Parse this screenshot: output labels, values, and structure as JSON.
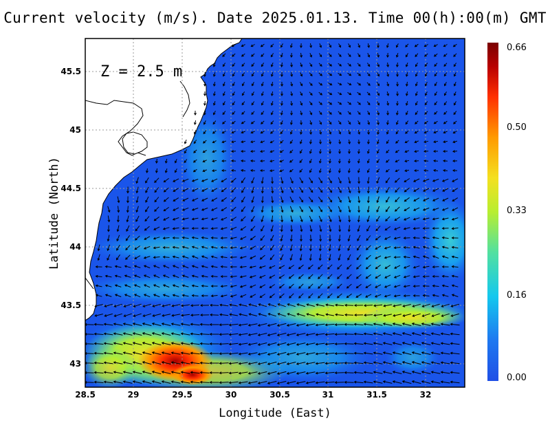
{
  "title": "Current velocity (m/s). Date 2025.01.13. Time 00(h):00(m) GMT",
  "depth_label": "Z = 2.5 m",
  "x_axis": {
    "label": "Longitude (East)",
    "ticks": [
      "28.5",
      "29",
      "29.5",
      "30",
      "30.5",
      "31",
      "31.5",
      "32"
    ],
    "range": [
      28.5,
      32.4
    ]
  },
  "y_axis": {
    "label": "Latitude (North)",
    "ticks": [
      "45.5",
      "45",
      "44.5",
      "44",
      "43.5",
      "43"
    ],
    "range": [
      42.8,
      45.8
    ]
  },
  "colorbar": {
    "labels": [
      "0.66",
      "0.50",
      "0.33",
      "0.16",
      "0.00"
    ],
    "min": 0.0,
    "max": 0.66,
    "colors": [
      "#1f4fe6",
      "#1e78f0",
      "#14c8ee",
      "#52e0a0",
      "#b8ee30",
      "#f4e020",
      "#ff9a00",
      "#ff3000",
      "#b80000",
      "#7a0000"
    ]
  },
  "colors": {
    "land": "#ffffff",
    "coastline": "#000000",
    "grid": "#999999",
    "arrows": "#000000"
  }
}
